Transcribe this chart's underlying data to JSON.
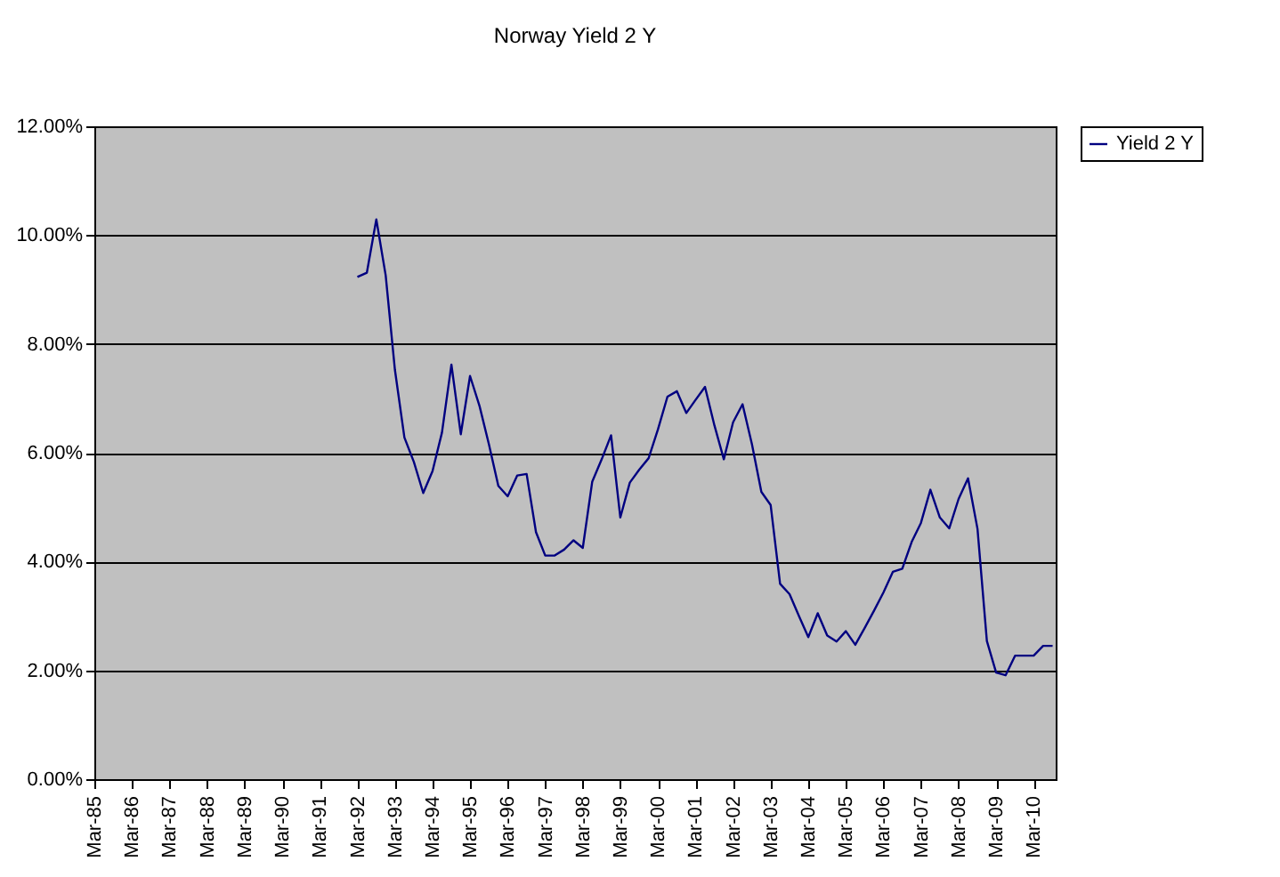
{
  "chart_data": {
    "type": "line",
    "title": "Norway Yield 2 Y",
    "x": [
      "1992-03",
      "1992-06",
      "1992-09",
      "1992-12",
      "1993-03",
      "1993-06",
      "1993-09",
      "1993-12",
      "1994-03",
      "1994-06",
      "1994-09",
      "1994-12",
      "1995-03",
      "1995-06",
      "1995-09",
      "1995-12",
      "1996-03",
      "1996-06",
      "1996-09",
      "1996-12",
      "1997-03",
      "1997-06",
      "1997-09",
      "1997-12",
      "1998-03",
      "1998-06",
      "1998-09",
      "1998-12",
      "1999-03",
      "1999-06",
      "1999-09",
      "1999-12",
      "2000-03",
      "2000-06",
      "2000-09",
      "2000-12",
      "2001-03",
      "2001-06",
      "2001-09",
      "2001-12",
      "2002-03",
      "2002-06",
      "2002-09",
      "2002-12",
      "2003-03",
      "2003-06",
      "2003-09",
      "2003-12",
      "2004-03",
      "2004-06",
      "2004-09",
      "2004-12",
      "2005-03",
      "2005-06",
      "2005-09",
      "2005-12",
      "2006-03",
      "2006-06",
      "2006-09",
      "2006-12",
      "2007-03",
      "2007-06",
      "2007-09",
      "2007-12",
      "2008-03",
      "2008-06",
      "2008-09",
      "2008-12",
      "2009-03",
      "2009-06",
      "2009-09",
      "2009-12",
      "2010-03",
      "2010-06",
      "2010-09"
    ],
    "series": [
      {
        "name": "Yield 2 Y",
        "color": "#000080",
        "values": [
          9.23,
          9.31,
          10.29,
          9.26,
          7.52,
          6.28,
          5.83,
          5.26,
          5.66,
          6.37,
          7.62,
          6.34,
          7.41,
          6.86,
          6.15,
          5.39,
          5.2,
          5.58,
          5.61,
          4.54,
          4.11,
          4.11,
          4.22,
          4.39,
          4.25,
          5.47,
          5.88,
          6.32,
          4.81,
          5.45,
          5.69,
          5.9,
          6.43,
          7.03,
          7.13,
          6.73,
          6.97,
          7.21,
          6.5,
          5.88,
          6.56,
          6.89,
          6.15,
          5.28,
          5.04,
          3.59,
          3.4,
          3.0,
          2.61,
          3.05,
          2.64,
          2.53,
          2.72,
          2.47,
          2.78,
          3.1,
          3.43,
          3.81,
          3.87,
          4.36,
          4.71,
          5.32,
          4.81,
          4.61,
          5.15,
          5.53,
          4.6,
          2.54,
          1.96,
          1.91,
          2.27,
          2.27,
          2.27,
          2.45,
          2.45
        ]
      }
    ],
    "xlim": [
      "1985-03",
      "2010-10"
    ],
    "xticks": [
      {
        "value": "1985-03",
        "label": "Mar-85"
      },
      {
        "value": "1986-03",
        "label": "Mar-86"
      },
      {
        "value": "1987-03",
        "label": "Mar-87"
      },
      {
        "value": "1988-03",
        "label": "Mar-88"
      },
      {
        "value": "1989-03",
        "label": "Mar-89"
      },
      {
        "value": "1990-03",
        "label": "Mar-90"
      },
      {
        "value": "1991-03",
        "label": "Mar-91"
      },
      {
        "value": "1992-03",
        "label": "Mar-92"
      },
      {
        "value": "1993-03",
        "label": "Mar-93"
      },
      {
        "value": "1994-03",
        "label": "Mar-94"
      },
      {
        "value": "1995-03",
        "label": "Mar-95"
      },
      {
        "value": "1996-03",
        "label": "Mar-96"
      },
      {
        "value": "1997-03",
        "label": "Mar-97"
      },
      {
        "value": "1998-03",
        "label": "Mar-98"
      },
      {
        "value": "1999-03",
        "label": "Mar-99"
      },
      {
        "value": "2000-03",
        "label": "Mar-00"
      },
      {
        "value": "2001-03",
        "label": "Mar-01"
      },
      {
        "value": "2002-03",
        "label": "Mar-02"
      },
      {
        "value": "2003-03",
        "label": "Mar-03"
      },
      {
        "value": "2004-03",
        "label": "Mar-04"
      },
      {
        "value": "2005-03",
        "label": "Mar-05"
      },
      {
        "value": "2006-03",
        "label": "Mar-06"
      },
      {
        "value": "2007-03",
        "label": "Mar-07"
      },
      {
        "value": "2008-03",
        "label": "Mar-08"
      },
      {
        "value": "2009-03",
        "label": "Mar-09"
      },
      {
        "value": "2010-03",
        "label": "Mar-10"
      }
    ],
    "ylim": [
      0,
      12
    ],
    "yticks": [
      {
        "value": 0,
        "label": "0.00%"
      },
      {
        "value": 2,
        "label": "2.00%"
      },
      {
        "value": 4,
        "label": "4.00%"
      },
      {
        "value": 6,
        "label": "6.00%"
      },
      {
        "value": 8,
        "label": "8.00%"
      },
      {
        "value": 10,
        "label": "10.00%"
      },
      {
        "value": 12,
        "label": "12.00%"
      }
    ],
    "grid": "y",
    "legend": "right"
  }
}
